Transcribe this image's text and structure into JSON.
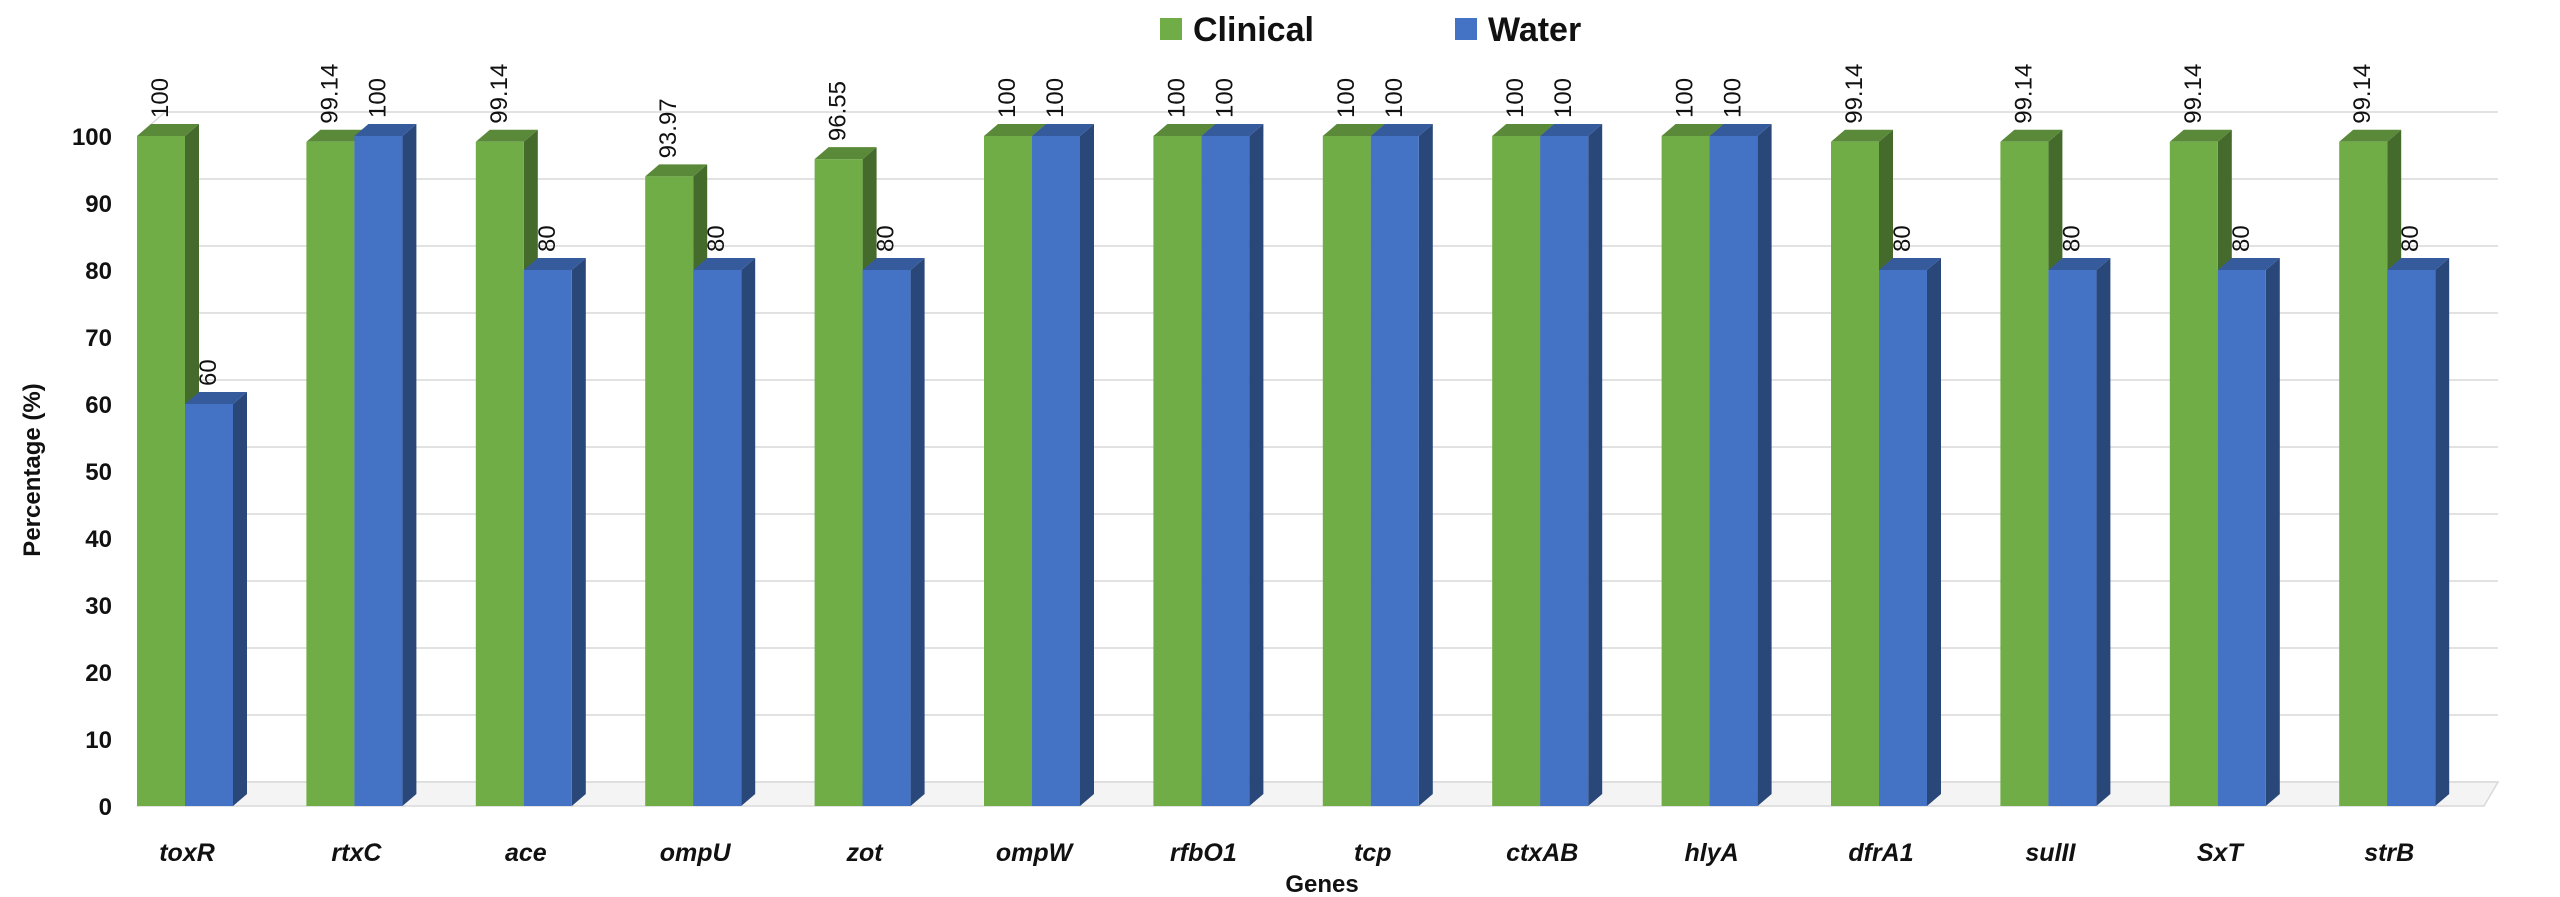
{
  "chart_data": {
    "type": "bar",
    "title": "",
    "xlabel": "Genes",
    "ylabel": "Percentage (%)",
    "ylim": [
      0,
      100
    ],
    "yticks": [
      0,
      10,
      20,
      30,
      40,
      50,
      60,
      70,
      80,
      90,
      100
    ],
    "grid": true,
    "legend_position": "top-center",
    "style": "3d-clustered-column",
    "categories": [
      "toxR",
      "rtxC",
      "ace",
      "ompU",
      "zot",
      "ompW",
      "rfbO1",
      "tcp",
      "ctxAB",
      "hlyA",
      "dfrA1",
      "sulII",
      "SxT",
      "strB"
    ],
    "series": [
      {
        "name": "Clinical",
        "color": "#70AD47",
        "values": [
          100,
          99.14,
          99.14,
          93.97,
          96.55,
          100,
          100,
          100,
          100,
          100,
          99.14,
          99.14,
          99.14,
          99.14
        ],
        "labels": [
          "100",
          "99.14",
          "99.14",
          "93.97",
          "96.55",
          "100",
          "100",
          "100",
          "100",
          "100",
          "99.14",
          "99.14",
          "99.14",
          "99.14"
        ]
      },
      {
        "name": "Water",
        "color": "#4472C4",
        "values": [
          60,
          100,
          80,
          80,
          80,
          100,
          100,
          100,
          100,
          100,
          80,
          80,
          80,
          80
        ],
        "labels": [
          "60",
          "100",
          "80",
          "80",
          "80",
          "100",
          "100",
          "100",
          "100",
          "100",
          "80",
          "80",
          "80",
          "80"
        ]
      }
    ]
  }
}
